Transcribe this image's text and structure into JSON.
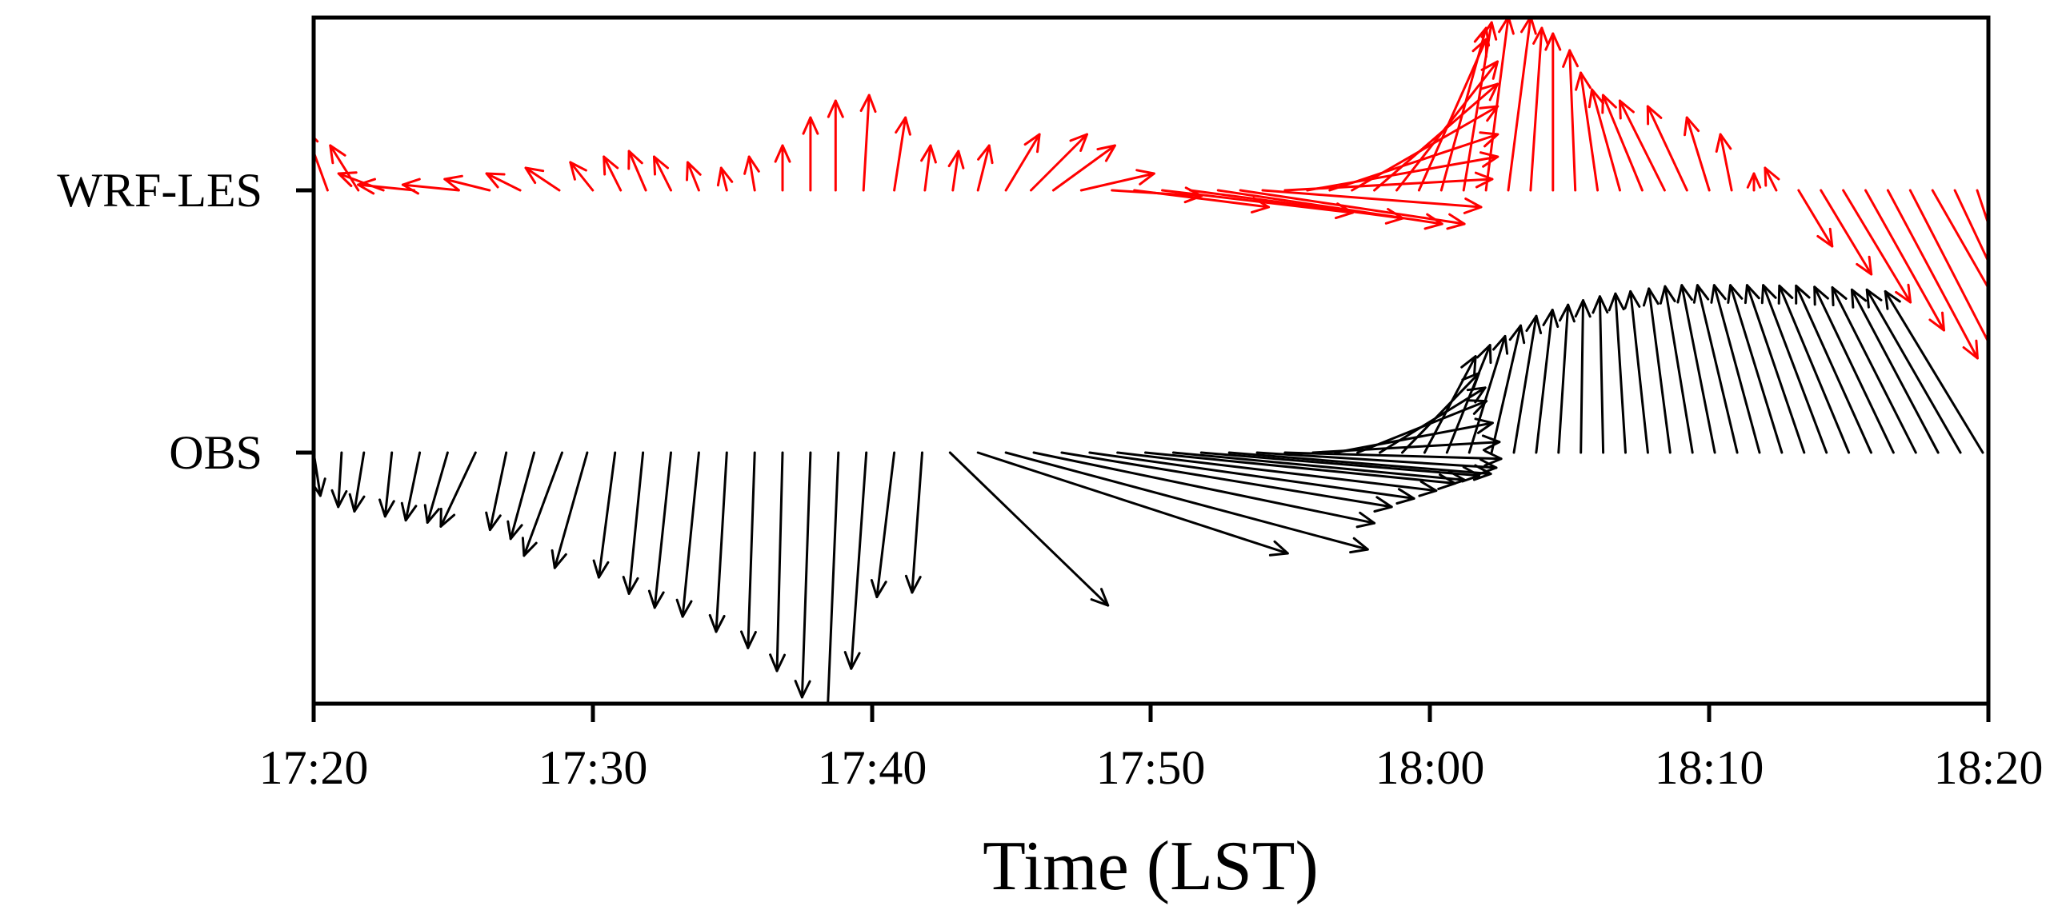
{
  "chart_data": {
    "type": "quiver",
    "title": "",
    "xlabel": "Time (LST)",
    "ylabel": "",
    "x_ticks": [
      "17:20",
      "17:30",
      "17:40",
      "17:50",
      "18:00",
      "18:10",
      "18:20"
    ],
    "xlim_minutes": [
      0,
      60
    ],
    "y_categories": [
      "WRF-LES",
      "OBS"
    ],
    "series": [
      {
        "name": "WRF-LES",
        "color": "#ff0000",
        "t": [
          0.5,
          1.6,
          2.5,
          3.6,
          5.2,
          6.3,
          7.4,
          8.8,
          10.0,
          11.0,
          11.9,
          12.8,
          13.8,
          14.8,
          15.8,
          16.8,
          17.8,
          18.7,
          19.7,
          20.8,
          21.9,
          22.9,
          23.8,
          24.8,
          25.7,
          26.5,
          27.5,
          28.6,
          29.4,
          30.4,
          31.4,
          32.4,
          33.2,
          34.0,
          34.8,
          35.6,
          36.4,
          37.2,
          38.0,
          38.8,
          39.6,
          40.4,
          41.2,
          42.0,
          42.8,
          43.6,
          44.4,
          45.2,
          46.0,
          46.8,
          47.6,
          48.4,
          49.2,
          50.0,
          50.8,
          51.6,
          52.4,
          53.2,
          54.0,
          54.8,
          55.6,
          56.4,
          57.2,
          58.0,
          58.8,
          59.6
        ],
        "u": [
          -0.4,
          -0.5,
          -0.8,
          -1.0,
          -1.0,
          -0.8,
          -0.6,
          -0.6,
          -0.4,
          -0.3,
          -0.3,
          -0.3,
          -0.2,
          -0.1,
          -0.1,
          0.0,
          0.0,
          0.0,
          0.1,
          0.2,
          0.1,
          0.1,
          0.2,
          0.6,
          1.0,
          1.1,
          1.3,
          1.6,
          2.4,
          3.4,
          3.8,
          4.0,
          4.0,
          3.9,
          3.7,
          3.4,
          3.0,
          2.6,
          2.2,
          1.8,
          1.2,
          0.8,
          0.5,
          0.4,
          0.4,
          0.2,
          0.0,
          -0.1,
          -0.3,
          -0.5,
          -0.7,
          -0.8,
          -0.7,
          -0.4,
          -0.2,
          0.0,
          -0.2,
          0.6,
          0.9,
          1.2,
          1.4,
          1.6,
          1.7,
          2.0,
          1.6,
          1.0
        ],
        "v": [
          1.1,
          0.8,
          0.3,
          0.1,
          0.1,
          0.2,
          0.3,
          0.4,
          0.5,
          0.6,
          0.7,
          0.6,
          0.5,
          0.4,
          0.6,
          0.8,
          1.3,
          1.6,
          1.7,
          1.3,
          0.8,
          0.7,
          0.8,
          1.0,
          1.0,
          0.8,
          0.3,
          -0.1,
          -0.3,
          -0.4,
          -0.5,
          -0.6,
          -0.6,
          -0.3,
          0.2,
          0.6,
          1.0,
          1.5,
          1.9,
          2.3,
          2.7,
          2.9,
          3.0,
          3.1,
          3.1,
          2.9,
          2.8,
          2.5,
          2.1,
          1.8,
          1.7,
          1.6,
          1.5,
          1.3,
          1.0,
          0.3,
          0.4,
          -1.0,
          -1.5,
          -2.0,
          -2.5,
          -3.0,
          -3.3,
          -3.5,
          -3.4,
          -3.0
        ]
      },
      {
        "name": "OBS",
        "color": "#000000",
        "t": [
          0.0,
          1.0,
          1.8,
          2.8,
          3.8,
          4.8,
          5.8,
          6.9,
          7.9,
          8.9,
          9.8,
          10.8,
          11.8,
          12.8,
          13.8,
          14.8,
          15.8,
          16.8,
          17.8,
          18.8,
          19.8,
          20.8,
          21.8,
          22.8,
          23.8,
          24.8,
          25.8,
          26.8,
          27.8,
          28.8,
          29.8,
          30.8,
          31.8,
          32.8,
          33.8,
          34.8,
          35.8,
          36.6,
          37.4,
          38.2,
          39.0,
          39.8,
          40.6,
          41.4,
          42.2,
          43.0,
          43.8,
          44.6,
          45.4,
          46.2,
          47.0,
          47.8,
          48.6,
          49.4,
          50.2,
          51.0,
          51.8,
          52.6,
          53.4,
          54.2,
          55.0,
          55.8,
          56.6,
          57.4,
          58.2,
          59.0,
          59.8
        ],
        "u": [
          0.12,
          -0.06,
          -0.17,
          -0.12,
          -0.25,
          -0.36,
          -0.62,
          -0.29,
          -0.42,
          -0.68,
          -0.58,
          -0.29,
          -0.25,
          -0.29,
          -0.29,
          -0.19,
          -0.12,
          -0.1,
          -0.15,
          -0.2,
          -0.27,
          -0.31,
          -0.18,
          2.82,
          5.53,
          6.46,
          6.08,
          5.89,
          5.79,
          5.69,
          5.53,
          5.2,
          4.96,
          4.67,
          4.27,
          3.86,
          3.33,
          2.81,
          2.3,
          1.88,
          1.37,
          0.91,
          0.77,
          0.64,
          0.52,
          0.4,
          0.29,
          0.17,
          0.04,
          -0.06,
          -0.18,
          -0.31,
          -0.38,
          -0.49,
          -0.59,
          -0.71,
          -0.81,
          -0.92,
          -1.02,
          -1.13,
          -1.24,
          -1.34,
          -1.41,
          -1.49,
          -1.54,
          -1.67,
          -1.74
        ],
        "v": [
          -0.77,
          -0.97,
          -1.05,
          -1.14,
          -1.21,
          -1.25,
          -1.32,
          -1.38,
          -1.54,
          -1.84,
          -2.06,
          -2.23,
          -2.52,
          -2.77,
          -2.93,
          -3.2,
          -3.49,
          -3.9,
          -4.37,
          -4.79,
          -3.86,
          -2.58,
          -2.5,
          -2.73,
          -1.8,
          -1.73,
          -1.26,
          -0.97,
          -0.82,
          -0.68,
          -0.55,
          -0.49,
          -0.41,
          -0.38,
          -0.27,
          -0.11,
          0.19,
          0.53,
          0.92,
          1.16,
          1.42,
          1.72,
          1.92,
          2.08,
          2.27,
          2.44,
          2.55,
          2.64,
          2.72,
          2.79,
          2.84,
          2.88,
          2.93,
          2.97,
          2.99,
          2.99,
          2.99,
          2.99,
          2.99,
          2.99,
          2.98,
          2.98,
          2.96,
          2.95,
          2.91,
          2.91,
          2.88
        ]
      }
    ]
  }
}
